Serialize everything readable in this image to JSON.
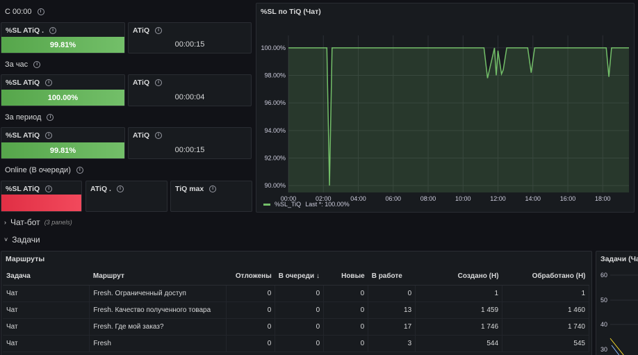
{
  "rows": {
    "since_midnight": "С 00:00",
    "per_hour": "За час",
    "per_period": "За период",
    "online": "Online (В очереди)"
  },
  "stats": {
    "r1": {
      "sl_title": "%SL ATiQ .",
      "sl_value": "99.81%",
      "atiq_title": "ATiQ",
      "atiq_value": "00:00:15"
    },
    "r2": {
      "sl_title": "%SL ATiQ",
      "sl_value": "100.00%",
      "atiq_title": "ATiQ",
      "atiq_value": "00:00:04"
    },
    "r3": {
      "sl_title": "%SL ATiQ",
      "sl_value": "99.81%",
      "atiq_title": "ATiQ",
      "atiq_value": "00:00:15"
    },
    "r4": {
      "sl_title": "%SL ATiQ",
      "atiq_title": "ATiQ .",
      "tiq_title": "TiQ max"
    }
  },
  "graph": {
    "title": "%SL по TiQ (Чат)",
    "legend_series": "%SL_TiQ",
    "legend_last": "Last *: 100.00%",
    "line_color": "#73bf69"
  },
  "chart_data": {
    "type": "area",
    "title": "%SL по TiQ (Чат)",
    "y_ticks": [
      "100.00%",
      "98.00%",
      "96.00%",
      "94.00%",
      "92.00%",
      "90.00%"
    ],
    "x_ticks": [
      "00:00",
      "02:00",
      "04:00",
      "06:00",
      "08:00",
      "10:00",
      "12:00",
      "14:00",
      "16:00",
      "18:00"
    ],
    "ylim": [
      89.5,
      100.5
    ],
    "xlim": [
      0,
      19.5
    ],
    "series": [
      {
        "name": "%SL_TiQ",
        "x": [
          0,
          2.2,
          2.35,
          2.5,
          11.0,
          11.2,
          11.4,
          11.8,
          11.9,
          12.0,
          12.2,
          12.3,
          12.5,
          13.0,
          13.7,
          13.9,
          14.1,
          18.2,
          18.35,
          18.5,
          19.5
        ],
        "y": [
          100,
          100,
          90.0,
          100,
          100,
          100,
          97.8,
          100,
          98.0,
          99.8,
          98.1,
          98.4,
          100,
          100,
          100,
          98.2,
          100,
          100,
          97.9,
          100,
          100
        ]
      }
    ]
  },
  "sections": {
    "chatbot": "Чат-бот",
    "chatbot_sub": "(3 panels)",
    "tasks": "Задачи"
  },
  "routes": {
    "title": "Маршруты",
    "columns": [
      "Задача",
      "Маршрут",
      "Отложены",
      "В очереди",
      "Новые",
      "В работе",
      "Создано (Н)",
      "Обработано (Н)"
    ],
    "sort_arrow": "↓",
    "rows": [
      [
        "Чат",
        "Fresh. Ограниченный доступ",
        "0",
        "0",
        "0",
        "0",
        "1",
        "1"
      ],
      [
        "Чат",
        "Fresh. Качество полученного товара",
        "0",
        "0",
        "0",
        "13",
        "1 459",
        "1 460"
      ],
      [
        "Чат",
        "Fresh. Где мой заказ?",
        "0",
        "0",
        "0",
        "17",
        "1 746",
        "1 740"
      ],
      [
        "Чат",
        "Fresh",
        "0",
        "0",
        "0",
        "3",
        "544",
        "545"
      ]
    ]
  },
  "tasks_panel": {
    "title": "Задачи (Чат)",
    "y_ticks": [
      "60",
      "50",
      "40",
      "30"
    ]
  }
}
